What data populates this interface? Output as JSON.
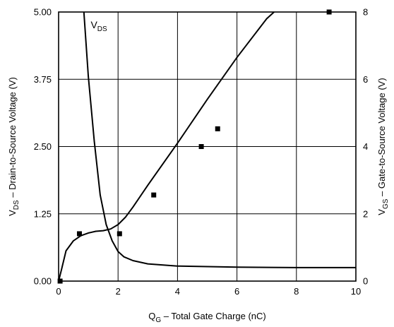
{
  "chart_data": {
    "type": "line",
    "x_axis": {
      "range": [
        0,
        10
      ],
      "ticks": [
        0,
        2,
        4,
        6,
        8,
        10
      ],
      "tick_labels": [
        "0",
        "2",
        "4",
        "6",
        "8",
        "10"
      ],
      "label_main": "Q",
      "label_sub": "G",
      "label_rest": " – Total Gate Charge (nC)"
    },
    "y_axis_left": {
      "range": [
        0,
        5
      ],
      "ticks": [
        0,
        1.25,
        2.5,
        3.75,
        5
      ],
      "tick_labels": [
        "0.00",
        "1.25",
        "2.50",
        "3.75",
        "5.00"
      ],
      "label_main": "V",
      "label_sub": "DS",
      "label_rest": " – Drain-to-Source Voltage (V)"
    },
    "y_axis_right": {
      "range": [
        0,
        8
      ],
      "ticks": [
        0,
        2,
        4,
        6,
        8
      ],
      "tick_labels": [
        "0",
        "2",
        "4",
        "6",
        "8"
      ],
      "label_main": "V",
      "label_sub": "GS",
      "label_rest": " – Gate-to-Source Voltage (V)"
    },
    "grid": true,
    "annotations": [
      {
        "text_main": "V",
        "text_sub": "DS"
      }
    ],
    "series": [
      {
        "axis": "left",
        "x": [
          0.85,
          1.0,
          1.2,
          1.4,
          1.6,
          1.8,
          2.0,
          2.2,
          2.5,
          3.0,
          4.0,
          6.0,
          8.0,
          10.0
        ],
        "y": [
          5.0,
          3.8,
          2.6,
          1.6,
          1.05,
          0.75,
          0.55,
          0.45,
          0.38,
          0.32,
          0.28,
          0.26,
          0.25,
          0.25
        ]
      },
      {
        "axis": "right",
        "x": [
          0,
          0.1,
          0.25,
          0.5,
          0.75,
          1.0,
          1.25,
          1.5,
          1.75,
          2.0,
          2.25,
          2.5,
          3.0,
          4.0,
          5.0,
          6.0,
          7.0,
          7.25
        ],
        "y": [
          0,
          0.35,
          0.9,
          1.2,
          1.35,
          1.43,
          1.48,
          1.5,
          1.55,
          1.68,
          1.9,
          2.2,
          2.85,
          4.1,
          5.4,
          6.65,
          7.8,
          8.0
        ]
      },
      {
        "axis": "left",
        "style": "markers",
        "x": [
          0.05,
          0.7,
          2.05,
          3.2,
          4.8,
          5.35,
          9.1
        ],
        "y": [
          0.0,
          0.88,
          0.88,
          1.6,
          2.5,
          2.83,
          5.0
        ]
      }
    ]
  }
}
